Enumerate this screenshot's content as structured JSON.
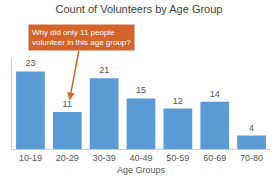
{
  "chart_data": {
    "type": "bar",
    "title": "Count of Volunteers by Age Group",
    "xlabel": "Age Groups",
    "categories": [
      "10-19",
      "20-29",
      "30-39",
      "40-49",
      "50-59",
      "60-69",
      "70-80"
    ],
    "values": [
      23,
      11,
      21,
      15,
      12,
      14,
      4
    ],
    "color": "#5B9BD5",
    "ylim": [
      0,
      27
    ],
    "grid": false,
    "data_labels": true,
    "tick_labels": "x",
    "annotations": [
      {
        "text": "Why did only 11 people\nvolunteer in this age group?",
        "x": "20-29",
        "y": 11,
        "color": "#D4642A"
      }
    ]
  }
}
